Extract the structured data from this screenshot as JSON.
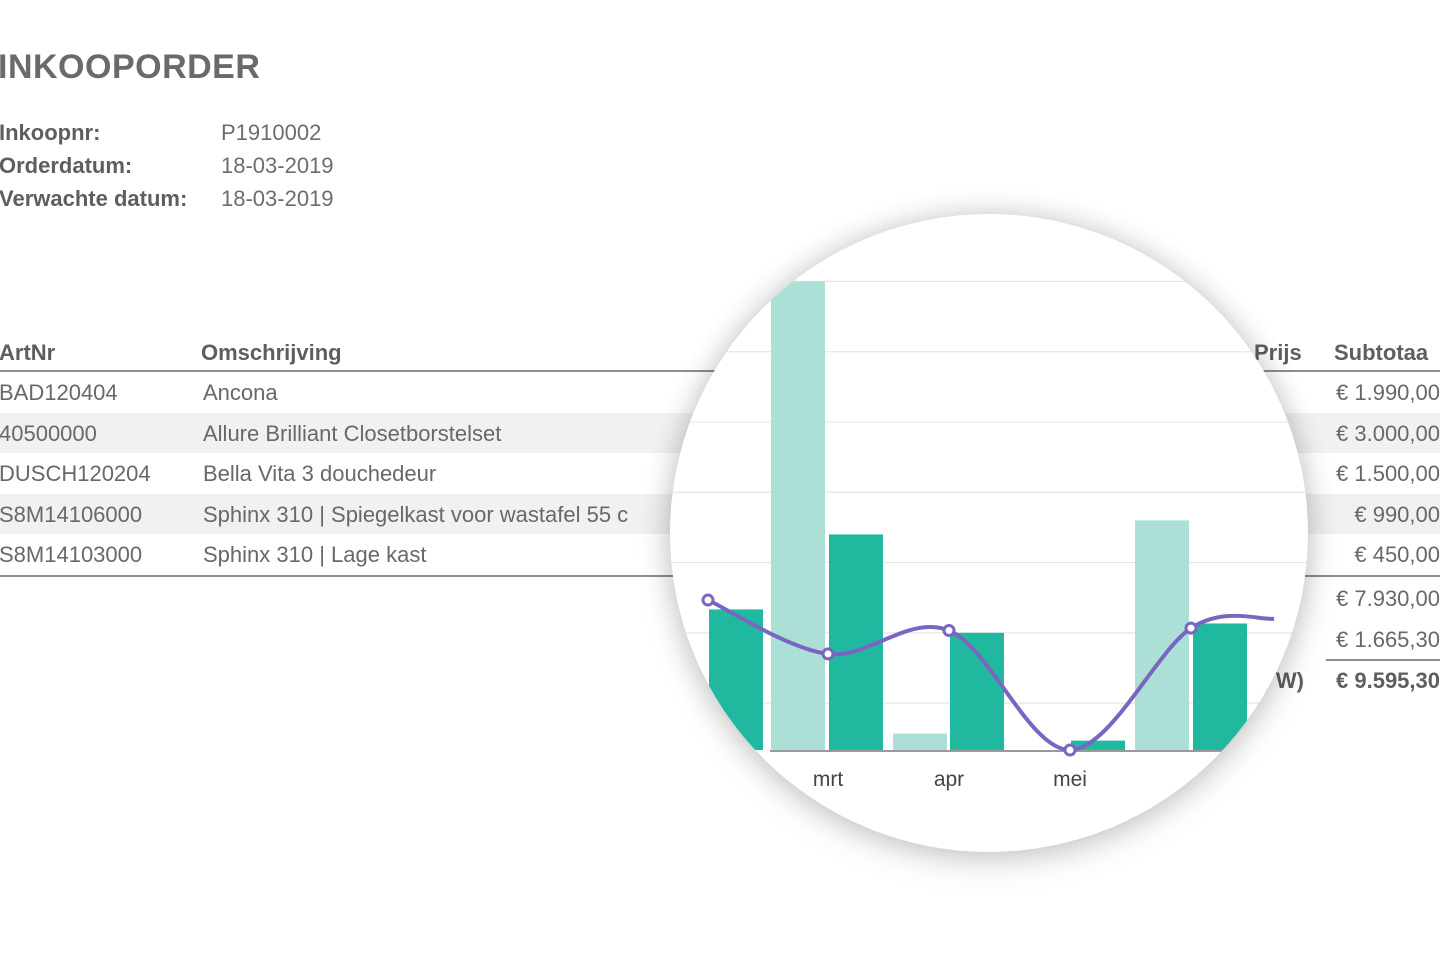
{
  "document": {
    "title": "INKOOPORDER",
    "meta": [
      {
        "label": "Inkoopnr:",
        "value": "P1910002"
      },
      {
        "label": "Orderdatum:",
        "value": "18-03-2019"
      },
      {
        "label": "Verwachte datum:",
        "value": "18-03-2019"
      }
    ]
  },
  "table": {
    "headers": {
      "artnr": "ArtNr",
      "omschrijving": "Omschrijving",
      "prijs": "Prijs",
      "subtotaal": "Subtotaa"
    },
    "rows": [
      {
        "artnr": "BAD120404",
        "omschrijving": "Ancona",
        "subtotaal": "€ 1.990,00"
      },
      {
        "artnr": "40500000",
        "omschrijving": "Allure Brilliant Closetborstelset",
        "subtotaal": "€ 3.000,00"
      },
      {
        "artnr": "DUSCH120204",
        "omschrijving": "Bella Vita 3 douchedeur",
        "subtotaal": "€ 1.500,00"
      },
      {
        "artnr": "S8M14106000",
        "omschrijving": "Sphinx 310 | Spiegelkast voor wastafel 55 c",
        "subtotaal": "€ 990,00"
      },
      {
        "artnr": "S8M14103000",
        "omschrijving": "Sphinx 310 | Lage kast",
        "subtotaal": "€ 450,00"
      }
    ],
    "summary": [
      {
        "label": "",
        "value": "€ 7.930,00"
      },
      {
        "label": "",
        "value": "€ 1.665,30"
      },
      {
        "label": "W)",
        "value": "€ 9.595,30"
      }
    ]
  },
  "chart_data": {
    "type": "bar",
    "categories": [
      "",
      "mrt",
      "apr",
      "mei",
      ""
    ],
    "series": [
      {
        "kind": "bar",
        "color": "#acdfd5",
        "values": [
          null,
          100,
          3.5,
          0,
          49
        ]
      },
      {
        "kind": "bar",
        "color": "#20b9a0",
        "values": [
          30,
          46,
          25,
          2,
          27
        ]
      },
      {
        "kind": "line",
        "color": "#7a66c0",
        "values": [
          32,
          20.5,
          25.5,
          0,
          26
        ]
      }
    ],
    "ylim": [
      0,
      102
    ],
    "grid": true,
    "colors": {
      "light_bar": "#acdfd5",
      "dark_bar": "#20b9a0",
      "line": "#7a66c0",
      "grid": "#e6e6e6"
    }
  }
}
